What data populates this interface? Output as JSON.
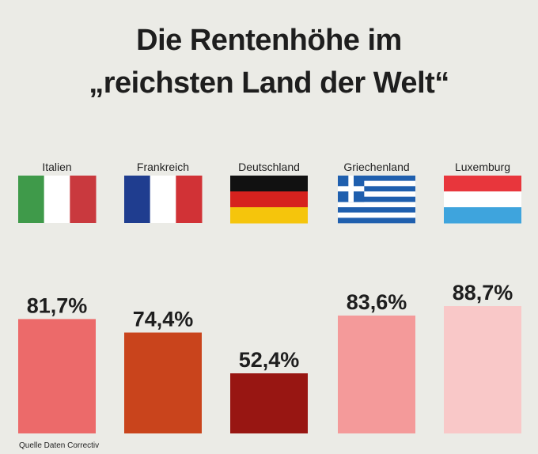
{
  "title_line1": "Die Rentenhöhe im",
  "title_line2": "„reichsten Land der Welt“",
  "source": "Quelle Daten Correctiv",
  "chart_data": {
    "type": "bar",
    "title": "Die Rentenhöhe im „reichsten Land der Welt“",
    "categories": [
      "Italien",
      "Frankreich",
      "Deutschland",
      "Griechenland",
      "Luxemburg"
    ],
    "values": [
      81.7,
      74.4,
      52.4,
      83.6,
      88.7
    ],
    "value_labels": [
      "81,7%",
      "74,4%",
      "52,4%",
      "83,6%",
      "88,7%"
    ],
    "bar_colors": [
      "#ec6a6a",
      "#c9441c",
      "#981612",
      "#f49a9a",
      "#f9c8c8"
    ],
    "flags": [
      "italy-flag",
      "france-flag",
      "germany-flag",
      "greece-flag",
      "luxembourg-flag"
    ],
    "ylim": [
      0,
      100
    ],
    "grid": false,
    "legend": "none"
  }
}
